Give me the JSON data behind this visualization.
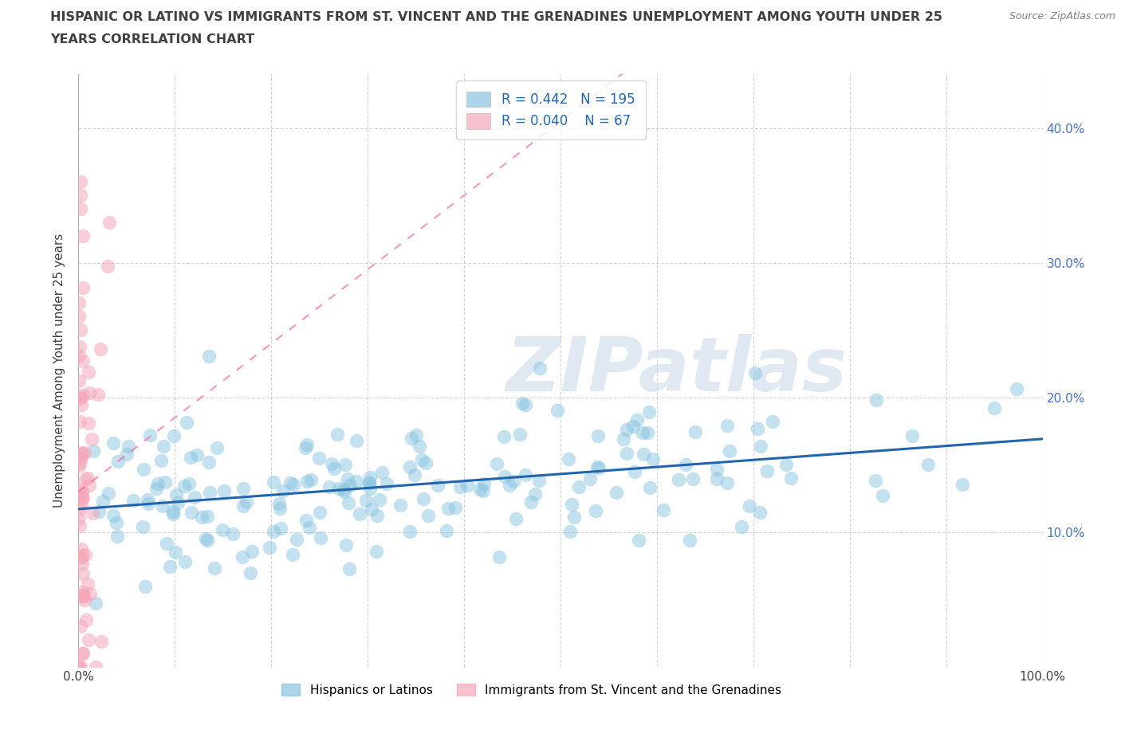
{
  "title_line1": "HISPANIC OR LATINO VS IMMIGRANTS FROM ST. VINCENT AND THE GRENADINES UNEMPLOYMENT AMONG YOUTH UNDER 25",
  "title_line2": "YEARS CORRELATION CHART",
  "source": "Source: ZipAtlas.com",
  "ylabel": "Unemployment Among Youth under 25 years",
  "xlim": [
    0,
    1.0
  ],
  "ylim": [
    0,
    0.44
  ],
  "xticks": [
    0.0,
    0.1,
    0.2,
    0.3,
    0.4,
    0.5,
    0.6,
    0.7,
    0.8,
    0.9,
    1.0
  ],
  "xticklabels": [
    "0.0%",
    "",
    "",
    "",
    "",
    "",
    "",
    "",
    "",
    "",
    "100.0%"
  ],
  "yticks": [
    0.0,
    0.1,
    0.2,
    0.3,
    0.4
  ],
  "yticklabels_right": [
    "",
    "10.0%",
    "20.0%",
    "30.0%",
    "40.0%"
  ],
  "legend_R1": "0.442",
  "legend_N1": "195",
  "legend_R2": "0.040",
  "legend_N2": "67",
  "legend_color1": "#89c4e1",
  "legend_color2": "#f4a7b9",
  "legend_label1": "Hispanics or Latinos",
  "legend_label2": "Immigrants from St. Vincent and the Grenadines",
  "watermark": "ZIPatlas",
  "blue_color": "#89c4e1",
  "blue_edge_color": "#89c4e1",
  "pink_color": "#f4a7b9",
  "pink_edge_color": "#f4a7b9",
  "blue_line_color": "#2166ac",
  "pink_line_color": "#f768a1",
  "right_tick_color": "#4472c4",
  "background_color": "#ffffff",
  "grid_color": "#cccccc",
  "title_color": "#404040",
  "source_color": "#808080"
}
